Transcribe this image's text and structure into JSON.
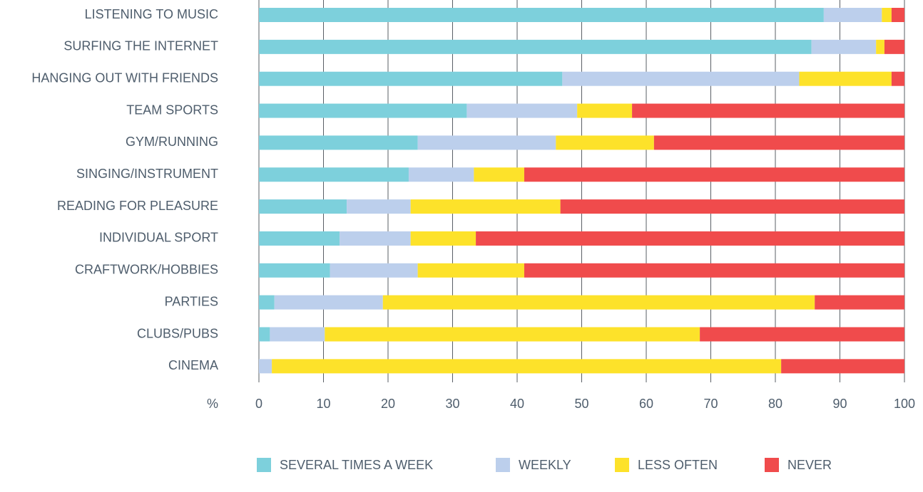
{
  "chart_data": {
    "type": "bar",
    "orientation": "horizontal",
    "stacked": true,
    "xlabel": "%",
    "categories": [
      "LISTENING TO MUSIC",
      "SURFING THE INTERNET",
      "HANGING OUT WITH FRIENDS",
      "TEAM SPORTS",
      "GYM/RUNNING",
      "SINGING/INSTRUMENT",
      "READING FOR PLEASURE",
      "INDIVIDUAL SPORT",
      "CRAFTWORK/HOBBIES",
      "PARTIES",
      "CLUBS/PUBS",
      "CINEMA"
    ],
    "series": [
      {
        "name": "SEVERAL TIMES A WEEK",
        "color": "#7dd0dc",
        "values": [
          87.5,
          85.6,
          47,
          32.2,
          24.6,
          23.2,
          13.6,
          12.5,
          11,
          2.4,
          1.7,
          0
        ]
      },
      {
        "name": "WEEKLY",
        "color": "#bccfec",
        "values": [
          9,
          10,
          36.7,
          17.1,
          21.4,
          10.1,
          9.9,
          11,
          13.6,
          16.8,
          8.5,
          2
        ]
      },
      {
        "name": "LESS OFTEN",
        "color": "#fde22a",
        "values": [
          1.5,
          1.3,
          14.3,
          8.5,
          15.2,
          7.8,
          23.2,
          10.1,
          16.5,
          66.9,
          58.1,
          78.9
        ]
      },
      {
        "name": "NEVER",
        "color": "#f04b4c",
        "values": [
          2,
          3.1,
          2,
          42.2,
          38.8,
          58.9,
          53.3,
          66.4,
          58.9,
          13.9,
          31.7,
          19.1
        ]
      }
    ],
    "xlim": [
      0,
      100
    ],
    "xticks": [
      0,
      10,
      20,
      30,
      40,
      50,
      60,
      70,
      80,
      90,
      100
    ],
    "grid": true,
    "legend": "bottom"
  }
}
